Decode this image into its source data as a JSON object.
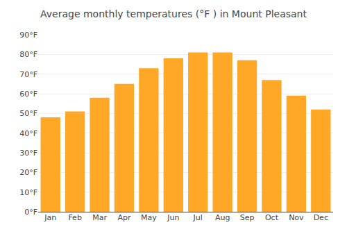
{
  "chart_data": {
    "type": "bar",
    "title": "Average monthly temperatures (°F ) in Mount Pleasant",
    "categories": [
      "Jan",
      "Feb",
      "Mar",
      "Apr",
      "May",
      "Jun",
      "Jul",
      "Aug",
      "Sep",
      "Oct",
      "Nov",
      "Dec"
    ],
    "values": [
      48,
      51,
      58,
      65,
      73,
      78,
      81,
      81,
      77,
      67,
      59,
      52
    ],
    "color": "#FFA726",
    "ylim": [
      0,
      90
    ],
    "yticks": [
      {
        "value": 0,
        "label": "0°F"
      },
      {
        "value": 10,
        "label": "10°F"
      },
      {
        "value": 20,
        "label": "20°F"
      },
      {
        "value": 30,
        "label": "30°F"
      },
      {
        "value": 40,
        "label": "40°F"
      },
      {
        "value": 50,
        "label": "50°F"
      },
      {
        "value": 60,
        "label": "60°F"
      },
      {
        "value": 70,
        "label": "70°F"
      },
      {
        "value": 80,
        "label": "80°F"
      },
      {
        "value": 90,
        "label": "90°F"
      }
    ],
    "grid": true
  }
}
